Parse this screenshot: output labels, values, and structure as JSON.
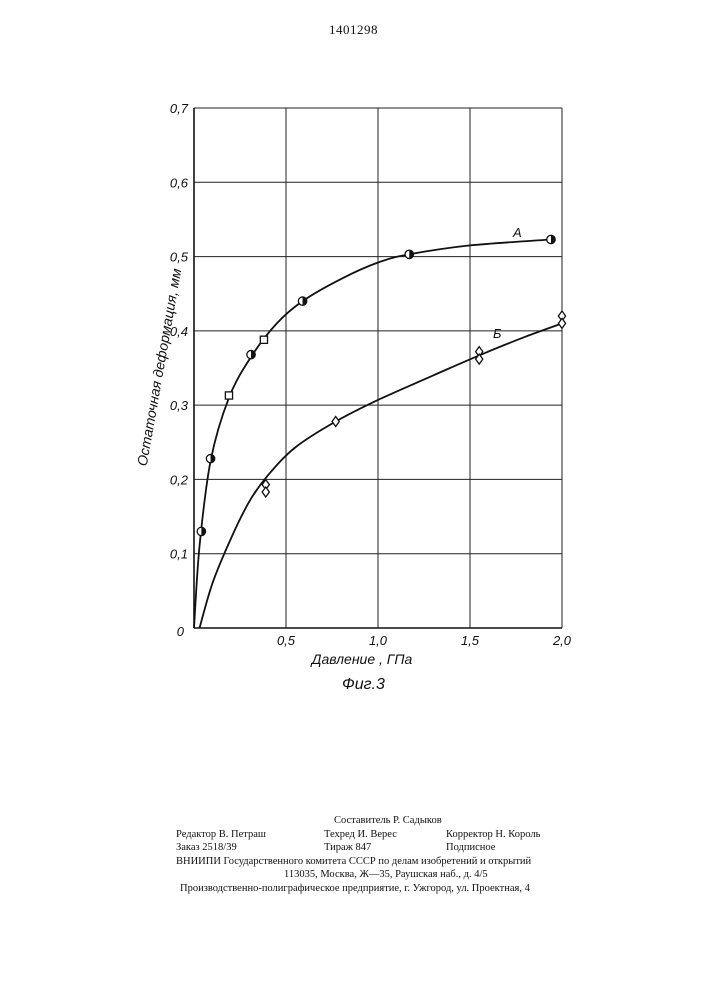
{
  "header": {
    "patent_number": "1401298"
  },
  "chart_data": {
    "type": "scatter",
    "title": "",
    "xlabel": "Давление , ГПа",
    "ylabel": "Остаточная деформация, мм",
    "xlim": [
      0,
      2.0
    ],
    "ylim": [
      0,
      0.7
    ],
    "x_ticks": [
      "0,5",
      "1,0",
      "1,5",
      "2,0"
    ],
    "x_tick_values": [
      0.5,
      1.0,
      1.5,
      2.0
    ],
    "y_ticks": [
      "0,1",
      "0,2",
      "0,3",
      "0,4",
      "0,5",
      "0,6",
      "0,7"
    ],
    "y_tick_values": [
      0.1,
      0.2,
      0.3,
      0.4,
      0.5,
      0.6,
      0.7
    ],
    "origin_label": "0",
    "grid": true,
    "series": [
      {
        "name": "А",
        "points": [
          {
            "x": 0.04,
            "y": 0.13,
            "marker": "half-circle"
          },
          {
            "x": 0.09,
            "y": 0.228,
            "marker": "half-circle"
          },
          {
            "x": 0.19,
            "y": 0.313,
            "marker": "square"
          },
          {
            "x": 0.31,
            "y": 0.368,
            "marker": "half-circle"
          },
          {
            "x": 0.38,
            "y": 0.388,
            "marker": "square"
          },
          {
            "x": 0.59,
            "y": 0.44,
            "marker": "half-circle"
          },
          {
            "x": 1.17,
            "y": 0.503,
            "marker": "half-circle"
          },
          {
            "x": 1.94,
            "y": 0.523,
            "marker": "half-circle"
          }
        ],
        "curve": [
          [
            0.0,
            0.0
          ],
          [
            0.03,
            0.11
          ],
          [
            0.09,
            0.225
          ],
          [
            0.19,
            0.31
          ],
          [
            0.31,
            0.365
          ],
          [
            0.45,
            0.41
          ],
          [
            0.59,
            0.44
          ],
          [
            0.8,
            0.47
          ],
          [
            1.0,
            0.492
          ],
          [
            1.17,
            0.503
          ],
          [
            1.5,
            0.515
          ],
          [
            1.94,
            0.523
          ]
        ]
      },
      {
        "name": "Б",
        "points": [
          {
            "x": 0.39,
            "y": 0.193,
            "marker": "diamond"
          },
          {
            "x": 0.39,
            "y": 0.183,
            "marker": "diamond"
          },
          {
            "x": 0.77,
            "y": 0.278,
            "marker": "diamond"
          },
          {
            "x": 1.55,
            "y": 0.372,
            "marker": "diamond"
          },
          {
            "x": 1.55,
            "y": 0.362,
            "marker": "diamond"
          },
          {
            "x": 2.0,
            "y": 0.42,
            "marker": "diamond"
          },
          {
            "x": 2.0,
            "y": 0.41,
            "marker": "diamond"
          }
        ],
        "curve": [
          [
            0.03,
            0.0
          ],
          [
            0.1,
            0.06
          ],
          [
            0.2,
            0.12
          ],
          [
            0.3,
            0.17
          ],
          [
            0.4,
            0.205
          ],
          [
            0.55,
            0.243
          ],
          [
            0.77,
            0.278
          ],
          [
            1.0,
            0.307
          ],
          [
            1.3,
            0.34
          ],
          [
            1.55,
            0.367
          ],
          [
            1.8,
            0.392
          ],
          [
            2.0,
            0.41
          ]
        ]
      }
    ],
    "caption": "Фиг.3"
  },
  "imprint": {
    "compiler": "Составитель Р. Садыков",
    "editor": "Редактор В. Петраш",
    "techred": "Техред И. Верес",
    "corrector": "Корректор Н. Король",
    "order": "Заказ 2518/39",
    "circulation": "Тираж 847",
    "subscription": "Подписное",
    "org_line1": "ВНИИПИ Государственного комитета СССР по делам изобретений и открытий",
    "org_line2": "113035, Москва, Ж—35, Раушская наб., д. 4/5",
    "printer": "Производственно-полиграфическое предприятие, г. Ужгород, ул. Проектная, 4"
  }
}
